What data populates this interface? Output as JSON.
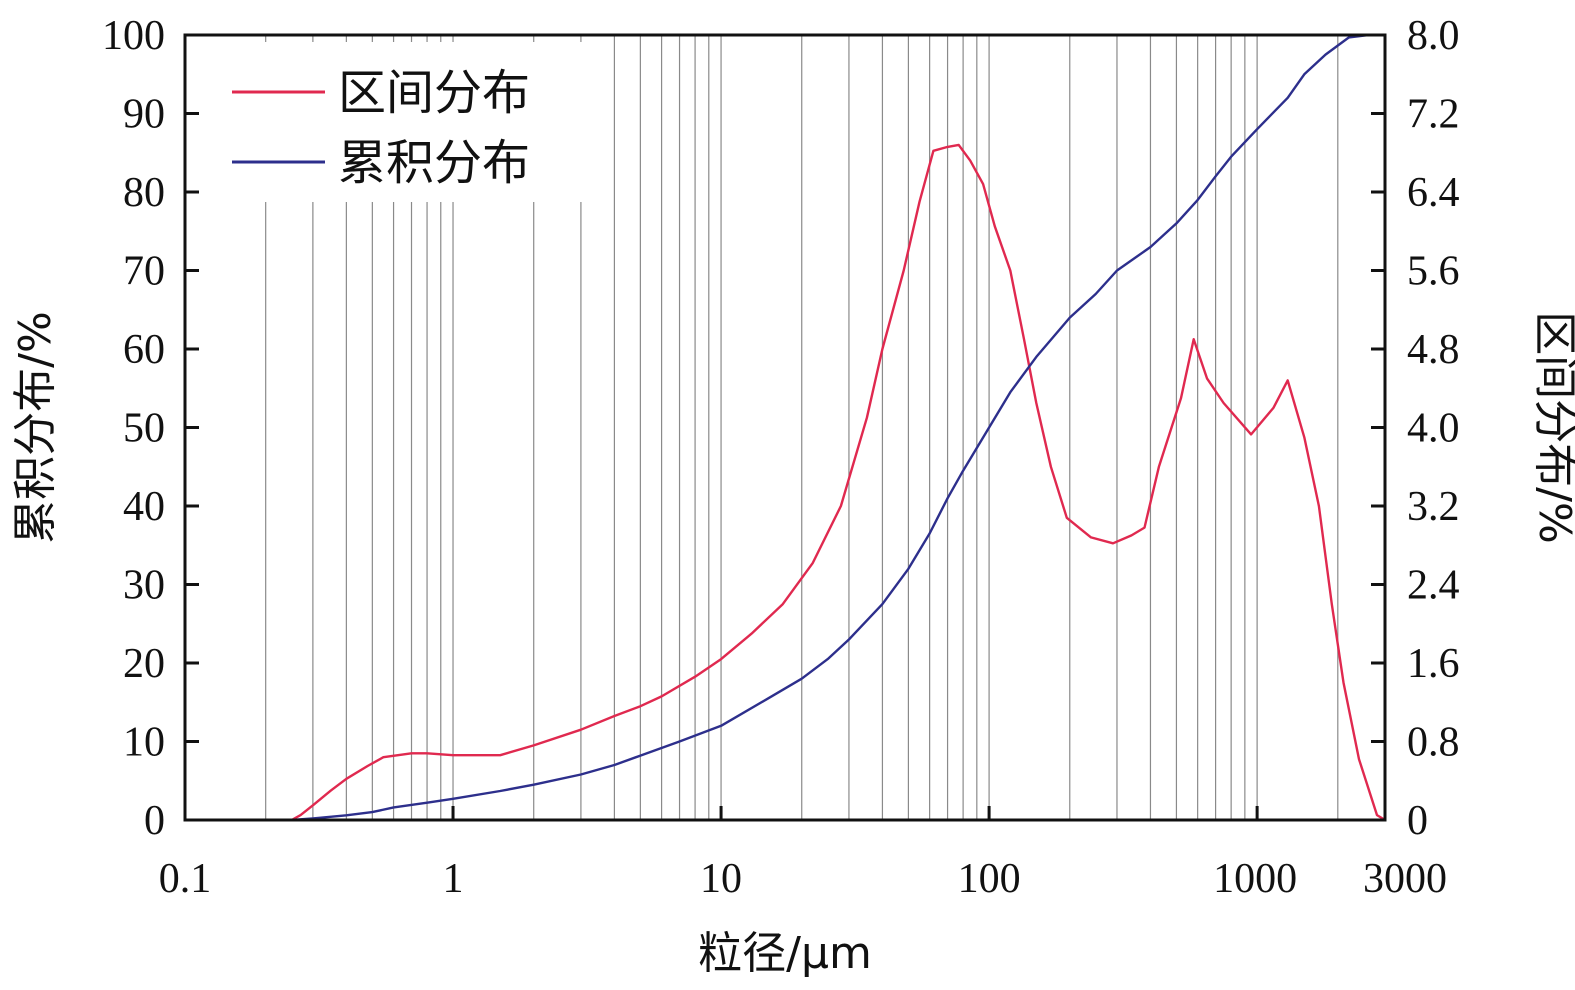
{
  "chart_data": {
    "type": "line",
    "xlabel": "粒径/μm",
    "ylabel_left": "累积分布/%",
    "ylabel_right": "区间分布/%",
    "x_scale": "log",
    "xlim": [
      0.1,
      3000
    ],
    "x_ticks": [
      {
        "value": 0.1,
        "label": "0.1"
      },
      {
        "value": 1,
        "label": "1"
      },
      {
        "value": 10,
        "label": "10"
      },
      {
        "value": 100,
        "label": "100"
      },
      {
        "value": 1000,
        "label": "1000"
      },
      {
        "value": 3000,
        "label": "3000"
      }
    ],
    "ylim_left": [
      0,
      100
    ],
    "y_ticks_left": [
      "0",
      "10",
      "20",
      "30",
      "40",
      "50",
      "60",
      "70",
      "80",
      "90",
      "100"
    ],
    "ylim_right": [
      0,
      8.0
    ],
    "y_ticks_right": [
      "0",
      "0.8",
      "1.6",
      "2.4",
      "3.2",
      "4.0",
      "4.8",
      "5.6",
      "6.4",
      "7.2",
      "8.0"
    ],
    "grid": "vertical",
    "legend_position": "top-left",
    "series": [
      {
        "name": "区间分布",
        "axis": "right",
        "color": "#e0294f",
        "points": [
          [
            0.25,
            0
          ],
          [
            0.27,
            0.05
          ],
          [
            0.3,
            0.15
          ],
          [
            0.35,
            0.3
          ],
          [
            0.4,
            0.42
          ],
          [
            0.48,
            0.55
          ],
          [
            0.55,
            0.64
          ],
          [
            0.7,
            0.68
          ],
          [
            0.8,
            0.68
          ],
          [
            1.0,
            0.66
          ],
          [
            1.2,
            0.66
          ],
          [
            1.5,
            0.66
          ],
          [
            2.0,
            0.76
          ],
          [
            3.0,
            0.92
          ],
          [
            4.0,
            1.06
          ],
          [
            5.0,
            1.16
          ],
          [
            6.0,
            1.26
          ],
          [
            8.0,
            1.46
          ],
          [
            10,
            1.64
          ],
          [
            13,
            1.9
          ],
          [
            17,
            2.2
          ],
          [
            22,
            2.62
          ],
          [
            28,
            3.2
          ],
          [
            35,
            4.1
          ],
          [
            40,
            4.8
          ],
          [
            48,
            5.6
          ],
          [
            55,
            6.3
          ],
          [
            62,
            6.82
          ],
          [
            70,
            6.86
          ],
          [
            77,
            6.88
          ],
          [
            85,
            6.72
          ],
          [
            95,
            6.48
          ],
          [
            105,
            6.05
          ],
          [
            120,
            5.6
          ],
          [
            135,
            4.9
          ],
          [
            150,
            4.25
          ],
          [
            170,
            3.6
          ],
          [
            195,
            3.08
          ],
          [
            240,
            2.88
          ],
          [
            290,
            2.82
          ],
          [
            340,
            2.9
          ],
          [
            380,
            2.98
          ],
          [
            430,
            3.6
          ],
          [
            520,
            4.3
          ],
          [
            580,
            4.9
          ],
          [
            650,
            4.5
          ],
          [
            750,
            4.25
          ],
          [
            950,
            3.93
          ],
          [
            1150,
            4.2
          ],
          [
            1300,
            4.48
          ],
          [
            1500,
            3.9
          ],
          [
            1700,
            3.2
          ],
          [
            1900,
            2.2
          ],
          [
            2100,
            1.4
          ],
          [
            2400,
            0.62
          ],
          [
            2800,
            0.05
          ],
          [
            3000,
            0
          ]
        ]
      },
      {
        "name": "累积分布",
        "axis": "left",
        "color": "#2d2f8c",
        "points": [
          [
            0.25,
            0
          ],
          [
            0.3,
            0.2
          ],
          [
            0.4,
            0.6
          ],
          [
            0.5,
            1.0
          ],
          [
            0.6,
            1.6
          ],
          [
            0.8,
            2.2
          ],
          [
            1.0,
            2.7
          ],
          [
            1.5,
            3.7
          ],
          [
            2.0,
            4.5
          ],
          [
            3.0,
            5.8
          ],
          [
            4.0,
            7.0
          ],
          [
            5.0,
            8.2
          ],
          [
            7.0,
            10.0
          ],
          [
            10,
            12.0
          ],
          [
            15,
            15.5
          ],
          [
            20,
            18.0
          ],
          [
            25,
            20.5
          ],
          [
            30,
            23.0
          ],
          [
            40,
            27.5
          ],
          [
            50,
            32.0
          ],
          [
            60,
            36.5
          ],
          [
            70,
            41.0
          ],
          [
            80,
            44.5
          ],
          [
            100,
            50.0
          ],
          [
            120,
            54.5
          ],
          [
            150,
            59.0
          ],
          [
            200,
            64.0
          ],
          [
            250,
            67.0
          ],
          [
            300,
            70.0
          ],
          [
            400,
            73.0
          ],
          [
            500,
            76.0
          ],
          [
            600,
            79.0
          ],
          [
            700,
            82.0
          ],
          [
            800,
            84.5
          ],
          [
            1000,
            88.0
          ],
          [
            1300,
            92.0
          ],
          [
            1500,
            95.0
          ],
          [
            1800,
            97.5
          ],
          [
            2200,
            99.7
          ],
          [
            2600,
            100
          ],
          [
            3000,
            100
          ]
        ]
      }
    ]
  }
}
